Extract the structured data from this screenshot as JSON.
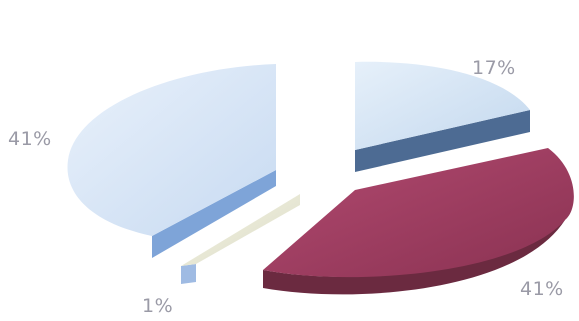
{
  "chart_data": {
    "type": "pie",
    "style": "3d-exploded",
    "title": "",
    "slices": [
      {
        "label": "17%",
        "value": 17,
        "color": "#d4e5f6",
        "side_color": "#4d6b93"
      },
      {
        "label": "41%",
        "value": 41,
        "color": "#9b3b5e",
        "side_color": "#6b2a40"
      },
      {
        "label": "1%",
        "value": 1,
        "color": "#e9e9d6",
        "side_color": "#a9aa98"
      },
      {
        "label": "41%",
        "value": 41,
        "color": "#d8e6f7",
        "side_color": "#7ea4d8"
      }
    ],
    "legend": "none",
    "grid": false
  }
}
